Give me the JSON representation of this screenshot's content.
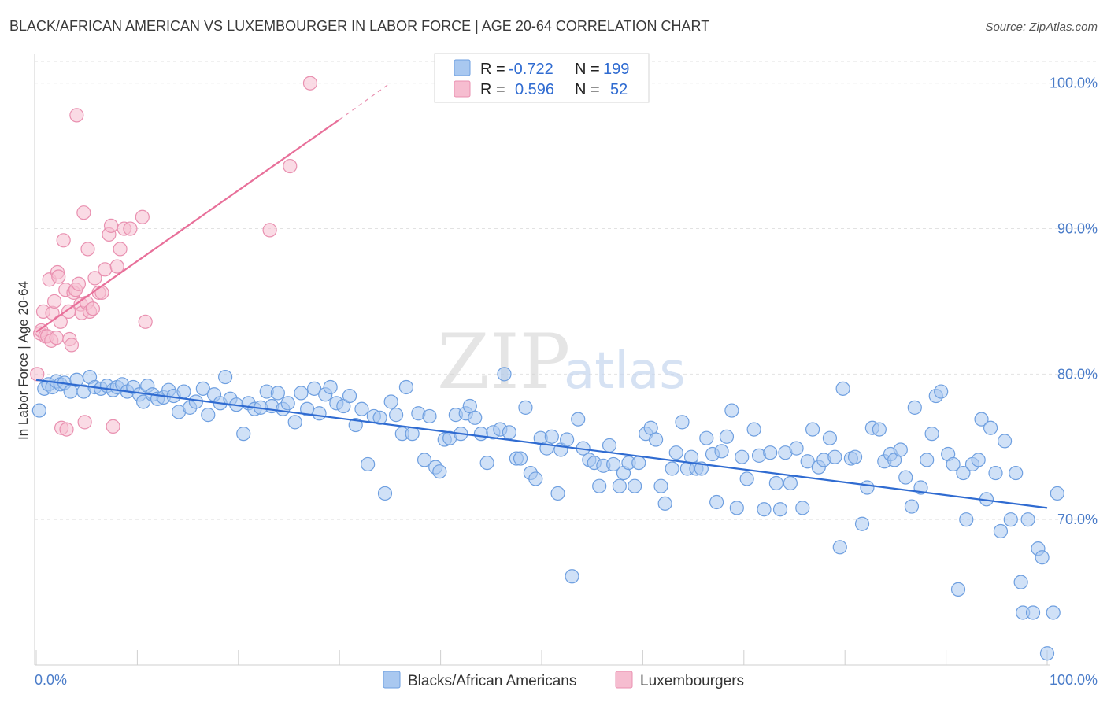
{
  "header": {
    "title": "BLACK/AFRICAN AMERICAN VS LUXEMBOURGER IN LABOR FORCE | AGE 20-64 CORRELATION CHART",
    "source": "Source: ZipAtlas.com"
  },
  "watermark": {
    "zip": "ZIP",
    "atlas": "atlas"
  },
  "colors": {
    "blue_fill": "#a9c8f0",
    "blue_stroke": "#6e9fe0",
    "blue_line": "#2f6bd1",
    "pink_fill": "#f6bdd0",
    "pink_stroke": "#e990b0",
    "pink_line": "#e8709a",
    "grid": "#e2e2e2",
    "tick_text": "#4a7cc9"
  },
  "stats_legend": {
    "rows": [
      {
        "r_label": "R =",
        "r_value": "-0.722",
        "n_label": "N =",
        "n_value": "199"
      },
      {
        "r_label": "R =",
        "r_value": "0.596",
        "n_label": "N =",
        "n_value": "52"
      }
    ]
  },
  "chart_data": {
    "type": "scatter",
    "title": "BLACK/AFRICAN AMERICAN VS LUXEMBOURGER IN LABOR FORCE | AGE 20-64 CORRELATION CHART",
    "xlabel": "",
    "ylabel": "In Labor Force | Age 20-64",
    "xlim": [
      0,
      100
    ],
    "ylim": [
      60,
      101.5
    ],
    "x_tick_labels": [
      "0.0%",
      "100.0%"
    ],
    "y_ticks": [
      70,
      80,
      90,
      100
    ],
    "y_tick_labels": [
      "70.0%",
      "80.0%",
      "90.0%",
      "100.0%"
    ],
    "grid": true,
    "legend": {
      "position": "bottom",
      "entries": [
        "Blacks/African Americans",
        "Luxembourgers"
      ]
    },
    "series": [
      {
        "name": "Blacks/African Americans",
        "trend": {
          "x": [
            0,
            100
          ],
          "y": [
            79.6,
            70.8
          ]
        },
        "points": [
          [
            0.3,
            77.5
          ],
          [
            0.8,
            79
          ],
          [
            1.2,
            79.3
          ],
          [
            1.6,
            79.1
          ],
          [
            2.0,
            79.5
          ],
          [
            2.4,
            79.3
          ],
          [
            2.8,
            79.4
          ],
          [
            3.4,
            78.8
          ],
          [
            4.0,
            79.6
          ],
          [
            4.7,
            78.8
          ],
          [
            5.3,
            79.8
          ],
          [
            5.8,
            79.1
          ],
          [
            6.4,
            79.0
          ],
          [
            7.0,
            79.2
          ],
          [
            7.6,
            78.9
          ],
          [
            8.0,
            79.1
          ],
          [
            8.5,
            79.3
          ],
          [
            9.0,
            78.8
          ],
          [
            9.6,
            79.1
          ],
          [
            10.2,
            78.6
          ],
          [
            10.6,
            78.1
          ],
          [
            11.0,
            79.2
          ],
          [
            11.5,
            78.6
          ],
          [
            12.0,
            78.3
          ],
          [
            12.6,
            78.4
          ],
          [
            13.1,
            78.9
          ],
          [
            13.6,
            78.5
          ],
          [
            14.1,
            77.4
          ],
          [
            14.6,
            78.8
          ],
          [
            15.2,
            77.7
          ],
          [
            15.8,
            78.1
          ],
          [
            16.5,
            79.0
          ],
          [
            17.0,
            77.2
          ],
          [
            17.6,
            78.6
          ],
          [
            18.2,
            78.0
          ],
          [
            18.7,
            79.8
          ],
          [
            19.2,
            78.3
          ],
          [
            19.8,
            77.9
          ],
          [
            20.5,
            75.9
          ],
          [
            21.0,
            78.0
          ],
          [
            21.6,
            77.6
          ],
          [
            22.2,
            77.7
          ],
          [
            22.8,
            78.8
          ],
          [
            23.3,
            77.8
          ],
          [
            23.9,
            78.7
          ],
          [
            24.4,
            77.6
          ],
          [
            24.9,
            78.0
          ],
          [
            25.6,
            76.7
          ],
          [
            26.2,
            78.7
          ],
          [
            26.8,
            77.6
          ],
          [
            27.5,
            79.0
          ],
          [
            28.0,
            77.3
          ],
          [
            28.6,
            78.6
          ],
          [
            29.1,
            79.1
          ],
          [
            29.7,
            78.0
          ],
          [
            30.4,
            77.8
          ],
          [
            31.0,
            78.5
          ],
          [
            31.6,
            76.5
          ],
          [
            32.2,
            77.6
          ],
          [
            32.8,
            73.8
          ],
          [
            33.4,
            77.1
          ],
          [
            34.0,
            77.0
          ],
          [
            34.5,
            71.8
          ],
          [
            35.1,
            78.1
          ],
          [
            35.6,
            77.2
          ],
          [
            36.2,
            75.9
          ],
          [
            36.6,
            79.1
          ],
          [
            37.2,
            75.9
          ],
          [
            37.8,
            77.3
          ],
          [
            38.4,
            74.1
          ],
          [
            38.9,
            77.1
          ],
          [
            39.5,
            73.6
          ],
          [
            39.9,
            73.3
          ],
          [
            40.4,
            75.5
          ],
          [
            40.9,
            75.6
          ],
          [
            41.5,
            77.2
          ],
          [
            42.0,
            75.9
          ],
          [
            42.5,
            77.3
          ],
          [
            42.9,
            77.8
          ],
          [
            43.4,
            77.0
          ],
          [
            44.0,
            75.9
          ],
          [
            44.6,
            73.9
          ],
          [
            45.2,
            76.0
          ],
          [
            45.9,
            76.2
          ],
          [
            46.3,
            80.0
          ],
          [
            46.8,
            76.0
          ],
          [
            47.5,
            74.2
          ],
          [
            47.9,
            74.2
          ],
          [
            48.4,
            77.7
          ],
          [
            48.9,
            73.2
          ],
          [
            49.4,
            72.8
          ],
          [
            49.9,
            75.6
          ],
          [
            50.5,
            74.9
          ],
          [
            51.0,
            75.7
          ],
          [
            51.6,
            71.8
          ],
          [
            51.9,
            74.8
          ],
          [
            52.5,
            75.5
          ],
          [
            53.0,
            66.1
          ],
          [
            53.6,
            76.9
          ],
          [
            54.1,
            74.9
          ],
          [
            54.7,
            74.1
          ],
          [
            55.2,
            73.9
          ],
          [
            55.7,
            72.3
          ],
          [
            56.1,
            73.7
          ],
          [
            56.7,
            75.1
          ],
          [
            57.1,
            73.8
          ],
          [
            57.7,
            72.3
          ],
          [
            58.1,
            73.2
          ],
          [
            58.6,
            73.9
          ],
          [
            59.2,
            72.3
          ],
          [
            59.6,
            73.9
          ],
          [
            60.3,
            75.9
          ],
          [
            60.8,
            76.3
          ],
          [
            61.3,
            75.5
          ],
          [
            61.8,
            72.3
          ],
          [
            62.2,
            71.1
          ],
          [
            62.9,
            73.5
          ],
          [
            63.3,
            74.6
          ],
          [
            63.9,
            76.7
          ],
          [
            64.4,
            73.5
          ],
          [
            64.8,
            74.3
          ],
          [
            65.3,
            73.5
          ],
          [
            65.8,
            73.5
          ],
          [
            66.3,
            75.6
          ],
          [
            66.9,
            74.5
          ],
          [
            67.3,
            71.2
          ],
          [
            67.8,
            74.7
          ],
          [
            68.3,
            75.7
          ],
          [
            68.8,
            77.5
          ],
          [
            69.3,
            70.8
          ],
          [
            69.8,
            74.3
          ],
          [
            70.3,
            72.8
          ],
          [
            71.0,
            76.2
          ],
          [
            71.5,
            74.4
          ],
          [
            72.0,
            70.7
          ],
          [
            72.6,
            74.6
          ],
          [
            73.2,
            72.5
          ],
          [
            73.6,
            70.7
          ],
          [
            74.1,
            74.6
          ],
          [
            74.6,
            72.5
          ],
          [
            75.2,
            74.9
          ],
          [
            75.8,
            70.8
          ],
          [
            76.3,
            74.0
          ],
          [
            76.8,
            76.2
          ],
          [
            77.4,
            73.6
          ],
          [
            77.9,
            74.1
          ],
          [
            78.5,
            75.6
          ],
          [
            79.0,
            74.3
          ],
          [
            79.5,
            68.1
          ],
          [
            79.8,
            79.0
          ],
          [
            80.6,
            74.2
          ],
          [
            81.0,
            74.3
          ],
          [
            81.7,
            69.7
          ],
          [
            82.2,
            72.2
          ],
          [
            82.7,
            76.3
          ],
          [
            83.4,
            76.2
          ],
          [
            83.9,
            74.0
          ],
          [
            84.5,
            74.5
          ],
          [
            84.9,
            74.1
          ],
          [
            85.5,
            74.8
          ],
          [
            86.0,
            72.9
          ],
          [
            86.6,
            70.9
          ],
          [
            86.9,
            77.7
          ],
          [
            87.5,
            72.2
          ],
          [
            88.1,
            74.1
          ],
          [
            88.6,
            75.9
          ],
          [
            89.0,
            78.5
          ],
          [
            89.5,
            78.8
          ],
          [
            90.2,
            74.5
          ],
          [
            90.7,
            73.8
          ],
          [
            91.2,
            65.2
          ],
          [
            91.7,
            73.2
          ],
          [
            92.0,
            70.0
          ],
          [
            92.6,
            73.8
          ],
          [
            93.2,
            74.1
          ],
          [
            93.5,
            76.9
          ],
          [
            94.0,
            71.4
          ],
          [
            94.4,
            76.3
          ],
          [
            94.9,
            73.2
          ],
          [
            95.4,
            69.2
          ],
          [
            95.8,
            75.4
          ],
          [
            96.4,
            70.0
          ],
          [
            96.9,
            73.2
          ],
          [
            97.4,
            65.7
          ],
          [
            97.6,
            63.6
          ],
          [
            98.1,
            70.0
          ],
          [
            98.6,
            63.6
          ],
          [
            99.1,
            68.0
          ],
          [
            99.5,
            67.4
          ],
          [
            100.0,
            60.8
          ],
          [
            100.6,
            63.6
          ],
          [
            101.0,
            71.8
          ]
        ]
      },
      {
        "name": "Luxembourgers",
        "trend": {
          "x": [
            0,
            30
          ],
          "y": [
            82.9,
            97.5
          ]
        },
        "trend_extension": {
          "x": [
            30,
            35
          ],
          "y": [
            97.5,
            100.0
          ]
        },
        "points": [
          [
            0.1,
            80.0
          ],
          [
            0.4,
            82.8
          ],
          [
            0.5,
            83.0
          ],
          [
            0.7,
            84.3
          ],
          [
            0.9,
            82.6
          ],
          [
            1.1,
            82.6
          ],
          [
            1.3,
            86.5
          ],
          [
            1.5,
            82.3
          ],
          [
            1.6,
            84.2
          ],
          [
            1.8,
            85.0
          ],
          [
            2.0,
            82.5
          ],
          [
            2.1,
            87.0
          ],
          [
            2.2,
            86.7
          ],
          [
            2.4,
            83.6
          ],
          [
            2.5,
            76.3
          ],
          [
            2.7,
            89.2
          ],
          [
            2.9,
            85.8
          ],
          [
            3.0,
            76.2
          ],
          [
            3.2,
            84.3
          ],
          [
            3.3,
            82.4
          ],
          [
            3.5,
            82.0
          ],
          [
            3.7,
            85.6
          ],
          [
            3.9,
            85.8
          ],
          [
            4.0,
            97.8
          ],
          [
            4.2,
            86.2
          ],
          [
            4.4,
            84.8
          ],
          [
            4.5,
            84.2
          ],
          [
            4.7,
            91.1
          ],
          [
            4.8,
            76.7
          ],
          [
            5.0,
            84.9
          ],
          [
            5.1,
            88.6
          ],
          [
            5.3,
            84.3
          ],
          [
            5.6,
            84.5
          ],
          [
            5.8,
            86.6
          ],
          [
            6.2,
            85.6
          ],
          [
            6.5,
            85.6
          ],
          [
            6.8,
            87.2
          ],
          [
            7.2,
            89.6
          ],
          [
            7.4,
            90.2
          ],
          [
            7.6,
            76.4
          ],
          [
            8.0,
            87.4
          ],
          [
            8.3,
            88.6
          ],
          [
            8.7,
            90.0
          ],
          [
            9.3,
            90.0
          ],
          [
            10.5,
            90.8
          ],
          [
            10.8,
            83.6
          ],
          [
            23.1,
            89.9
          ],
          [
            25.1,
            94.3
          ],
          [
            27.1,
            100.0
          ]
        ]
      }
    ]
  }
}
